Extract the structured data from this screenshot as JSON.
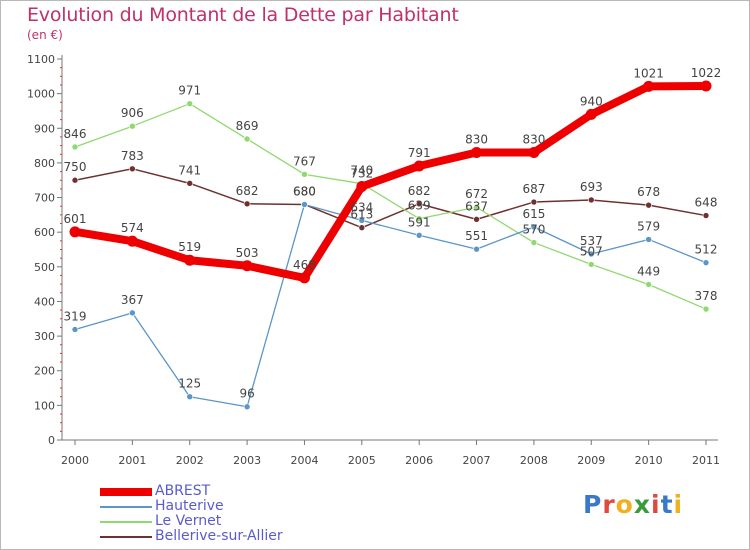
{
  "title": "Evolution du Montant de la Dette par Habitant",
  "subtitle": "(en €)",
  "logo": {
    "letters": [
      "P",
      "r",
      "o",
      "x",
      "i",
      "t",
      "i"
    ],
    "colors": [
      "#3a78c8",
      "#e0483c",
      "#f0b020",
      "#3a9a3c",
      "#e0483c",
      "#3a78c8",
      "#f0b020"
    ]
  },
  "chart_data": {
    "type": "line",
    "x": [
      "2000",
      "2001",
      "2002",
      "2003",
      "2004",
      "2005",
      "2006",
      "2007",
      "2008",
      "2009",
      "2010",
      "2011"
    ],
    "ylim": [
      0,
      1100
    ],
    "yticks": [
      0,
      100,
      200,
      300,
      400,
      500,
      600,
      700,
      800,
      900,
      1000,
      1100
    ],
    "grid": false,
    "legend_position": "bottom-left",
    "series": [
      {
        "name": "ABREST",
        "color": "#ee0000",
        "values": [
          601,
          574,
          519,
          503,
          468,
          732,
          791,
          830,
          830,
          940,
          1021,
          1022
        ]
      },
      {
        "name": "Hauterive",
        "color": "#5a96c8",
        "values": [
          319,
          367,
          125,
          96,
          680,
          634,
          591,
          551,
          615,
          537,
          579,
          512
        ]
      },
      {
        "name": "Le Vernet",
        "color": "#90d870",
        "values": [
          846,
          906,
          971,
          869,
          767,
          740,
          639,
          672,
          570,
          507,
          449,
          378
        ]
      },
      {
        "name": "Bellerive-sur-Allier",
        "color": "#703030",
        "values": [
          750,
          783,
          741,
          682,
          680,
          613,
          682,
          637,
          687,
          693,
          678,
          648
        ]
      }
    ]
  }
}
